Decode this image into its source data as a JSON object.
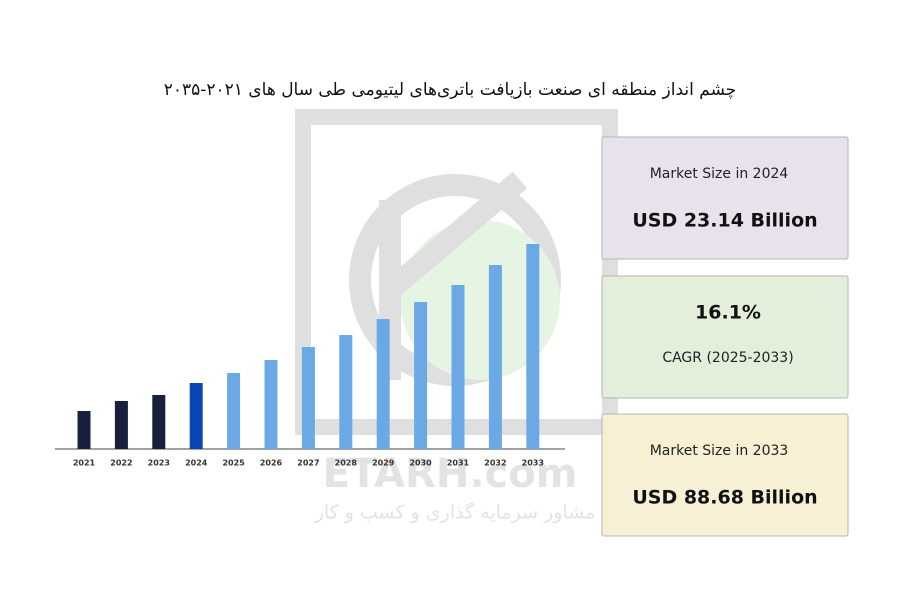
{
  "chart_data": {
    "type": "bar",
    "title": "چشم انداز منطقه ای صنعت بازیافت باتری‌های لیتیومی طی سال های ۲۰۲۱-۲۰۳۵",
    "categories": [
      "2021",
      "2022",
      "2023",
      "2024",
      "2025",
      "2026",
      "2027",
      "2028",
      "2029",
      "2030",
      "2031",
      "2032",
      "2033"
    ],
    "values": [
      38,
      48,
      54,
      66,
      76,
      89,
      102,
      114,
      130,
      147,
      164,
      184,
      205
    ],
    "colors": [
      "#17213d",
      "#17213d",
      "#17213d",
      "#0a47b5",
      "#6aa9e6",
      "#6aa9e6",
      "#6aa9e6",
      "#6aa9e6",
      "#6aa9e6",
      "#6aa9e6",
      "#6aa9e6",
      "#6aa9e6",
      "#6aa9e6"
    ],
    "ylim": [
      0,
      220
    ],
    "cards": [
      {
        "label": "Market Size in 2024",
        "value": "USD 23.14 Billion",
        "color": "#e8e2ec"
      },
      {
        "label": "CAGR (2025-2033)",
        "value": "16.1%",
        "color": "#e3eedb"
      },
      {
        "label": "Market Size in 2033",
        "value": "USD 88.68 Billion",
        "color": "#f7f0d5"
      }
    ],
    "watermark": {
      "brand": "ETARH.com",
      "tagline": "مشاور سرمایه گذاری و کسب و کار"
    }
  }
}
